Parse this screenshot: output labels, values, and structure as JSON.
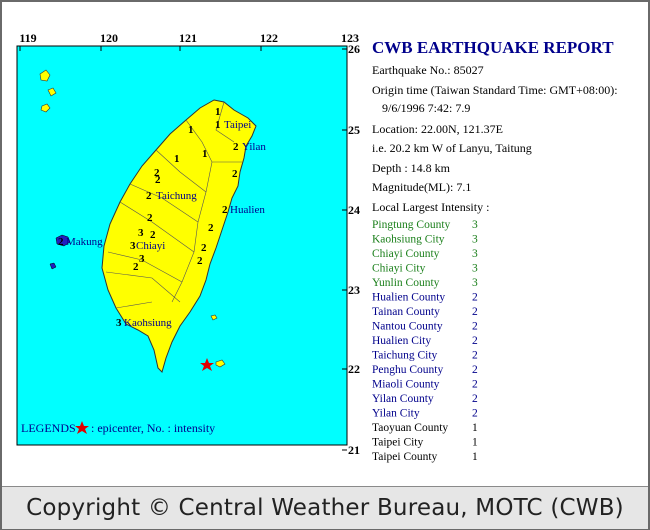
{
  "map": {
    "lon_ticks": [
      119,
      120,
      121,
      122,
      123
    ],
    "lat_ticks": [
      26,
      25,
      24,
      23,
      22,
      21
    ],
    "places": [
      "Taipei",
      "Yilan",
      "Taichung",
      "Hualien",
      "Makung",
      "Chiayi",
      "Kaohsiung"
    ],
    "intensity_marks": [
      1,
      1,
      1,
      2,
      1,
      1,
      2,
      2,
      2,
      2,
      2,
      2,
      3,
      3,
      2,
      2,
      3,
      2,
      2,
      2,
      2,
      3
    ],
    "legend": {
      "label": "LEGENDS",
      "text": ": epicenter, No. : intensity"
    }
  },
  "report": {
    "title": "CWB EARTHQUAKE REPORT",
    "lines": [
      "Earthquake No.: 85027",
      "Origin time (Taiwan Standard Time: GMT+08:00):",
      "9/6/1996  7:42: 7.9",
      "Location: 22.00N, 121.37E",
      "i.e. 20.2 km W of Lanyu, Taitung",
      "Depth :  14.8 km",
      "Magnitude(ML): 7.1",
      "Local Largest Intensity :"
    ],
    "intensities": [
      [
        "Pingtung County",
        3
      ],
      [
        "Kaohsiung City",
        3
      ],
      [
        "Chiayi County",
        3
      ],
      [
        "Chiayi City",
        3
      ],
      [
        "Yunlin County",
        3
      ],
      [
        "Hualien County",
        2
      ],
      [
        "Tainan County",
        2
      ],
      [
        "Nantou County",
        2
      ],
      [
        "Hualien City",
        2
      ],
      [
        "Taichung City",
        2
      ],
      [
        "Penghu County",
        2
      ],
      [
        "Miaoli County",
        2
      ],
      [
        "Yilan County",
        2
      ],
      [
        "Yilan City",
        2
      ],
      [
        "Taoyuan County",
        1
      ],
      [
        "Taipei City",
        1
      ],
      [
        "Taipei County",
        1
      ]
    ]
  },
  "footer": "Copyright © Central Weather Bureau, MOTC (CWB)"
}
